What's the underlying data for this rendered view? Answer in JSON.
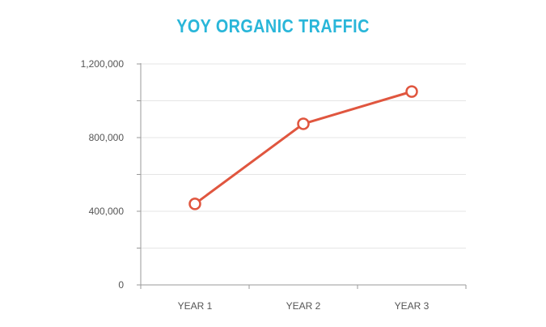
{
  "colors": {
    "title": "#29b6d9",
    "line": "#e0563f",
    "marker_fill": "#ffffff",
    "grid": "#e5e5e5",
    "axis": "#9a9a9a",
    "text": "#555555"
  },
  "chart_data": {
    "type": "line",
    "title": "YOY ORGANIC TRAFFIC",
    "xlabel": "",
    "ylabel": "",
    "categories": [
      "YEAR 1",
      "YEAR 2",
      "YEAR 3"
    ],
    "series": [
      {
        "values": [
          440000,
          875000,
          1050000
        ]
      }
    ],
    "ylim": [
      0,
      1200000
    ],
    "y_ticks": [
      0,
      400000,
      800000,
      1200000
    ],
    "y_tick_labels": [
      "0",
      "400,000",
      "800,000",
      "1,200,000"
    ],
    "y_minor_step": 200000,
    "grid": true,
    "legend": "none"
  }
}
